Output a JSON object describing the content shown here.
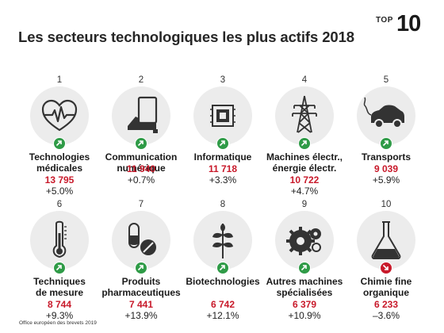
{
  "title": "Les secteurs technologiques les plus actifs 2018",
  "badge": {
    "word": "TOP",
    "number": "10"
  },
  "colors": {
    "accent": "#c8192a",
    "up": "#2f9b47",
    "down": "#c8192a",
    "circle": "#ececec",
    "icon": "#333333"
  },
  "sectors": [
    {
      "rank": "1",
      "name": "Technologies\nmédicales",
      "count": "13 795",
      "change": "+5.0%",
      "trend": "up",
      "icon": "heart-pulse-icon"
    },
    {
      "rank": "2",
      "name": "Communication\nnumérique",
      "count": "11 940",
      "change": "+0.7%",
      "trend": "up",
      "icon": "tablet-icon"
    },
    {
      "rank": "3",
      "name": "Informatique",
      "count": "11 718",
      "change": "+3.3%",
      "trend": "up",
      "icon": "chip-icon"
    },
    {
      "rank": "4",
      "name": "Machines électr.,\nénergie électr.",
      "count": "10 722",
      "change": "+4.7%",
      "trend": "up",
      "icon": "pylon-icon"
    },
    {
      "rank": "5",
      "name": "Transports",
      "count": "9 039",
      "change": "+5.9%",
      "trend": "up",
      "icon": "car-icon"
    },
    {
      "rank": "6",
      "name": "Techniques\nde mesure",
      "count": "8 744",
      "change": "+9.3%",
      "trend": "up",
      "icon": "thermometer-icon"
    },
    {
      "rank": "7",
      "name": "Produits\npharmaceutiques",
      "count": "7 441",
      "change": "+13.9%",
      "trend": "up",
      "icon": "pill-icon"
    },
    {
      "rank": "8",
      "name": "Biotechnologies",
      "count": "6 742",
      "change": "+12.1%",
      "trend": "up",
      "icon": "plant-icon"
    },
    {
      "rank": "9",
      "name": "Autres machines\nspécialisées",
      "count": "6 379",
      "change": "+10.9%",
      "trend": "up",
      "icon": "gears-icon"
    },
    {
      "rank": "10",
      "name": "Chimie fine\norganique",
      "count": "6 233",
      "change": "–3.6%",
      "trend": "down",
      "icon": "flask-icon"
    }
  ],
  "source": "Office européen des brevets 2019"
}
